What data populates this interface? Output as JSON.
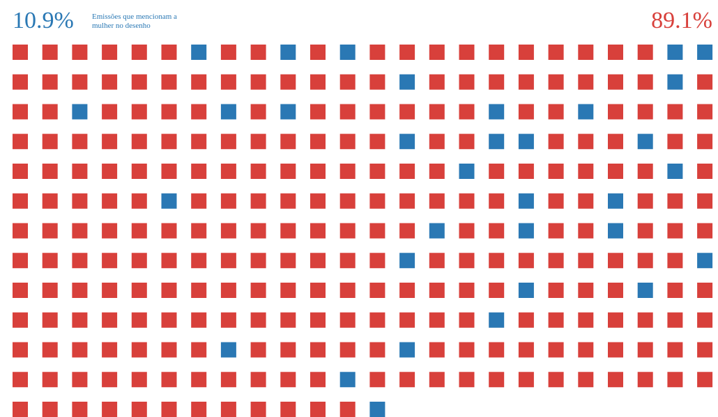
{
  "chart_data": {
    "type": "waffle",
    "series": [
      {
        "name": "Emissões que mencionam a mulher no desenho",
        "color": "#2a78b4",
        "value": 10.9,
        "value_label": "10.9%"
      },
      {
        "color": "#d8403b",
        "value": 89.1,
        "value_label": "89.1%"
      }
    ],
    "cells": [
      [
        1,
        1,
        1,
        1,
        1,
        1,
        0,
        1,
        1,
        0,
        1,
        0,
        1,
        1,
        1,
        1,
        1,
        1,
        1,
        1,
        1,
        1,
        0,
        0
      ],
      [
        1,
        1,
        1,
        1,
        1,
        1,
        1,
        1,
        1,
        1,
        1,
        1,
        1,
        0,
        1,
        1,
        1,
        1,
        1,
        1,
        1,
        1,
        0,
        1
      ],
      [
        1,
        1,
        0,
        1,
        1,
        1,
        1,
        0,
        1,
        0,
        1,
        1,
        1,
        1,
        1,
        1,
        0,
        1,
        1,
        0,
        1,
        1,
        1,
        1
      ],
      [
        1,
        1,
        1,
        1,
        1,
        1,
        1,
        1,
        1,
        1,
        1,
        1,
        1,
        0,
        1,
        1,
        0,
        0,
        1,
        1,
        1,
        0,
        1,
        1
      ],
      [
        1,
        1,
        1,
        1,
        1,
        1,
        1,
        1,
        1,
        1,
        1,
        1,
        1,
        1,
        1,
        0,
        1,
        1,
        1,
        1,
        1,
        1,
        0,
        1
      ],
      [
        1,
        1,
        1,
        1,
        1,
        0,
        1,
        1,
        1,
        1,
        1,
        1,
        1,
        1,
        1,
        1,
        1,
        0,
        1,
        1,
        0,
        1,
        1,
        1
      ],
      [
        1,
        1,
        1,
        1,
        1,
        1,
        1,
        1,
        1,
        1,
        1,
        1,
        1,
        1,
        0,
        1,
        1,
        0,
        1,
        1,
        0,
        1,
        1,
        1
      ],
      [
        1,
        1,
        1,
        1,
        1,
        1,
        1,
        1,
        1,
        1,
        1,
        1,
        1,
        0,
        1,
        1,
        1,
        1,
        1,
        1,
        1,
        1,
        1,
        0
      ],
      [
        1,
        1,
        1,
        1,
        1,
        1,
        1,
        1,
        1,
        1,
        1,
        1,
        1,
        1,
        1,
        1,
        1,
        0,
        1,
        1,
        1,
        0,
        1,
        1
      ],
      [
        1,
        1,
        1,
        1,
        1,
        1,
        1,
        1,
        1,
        1,
        1,
        1,
        1,
        1,
        1,
        1,
        0,
        1,
        1,
        1,
        1,
        1,
        1,
        1
      ],
      [
        1,
        1,
        1,
        1,
        1,
        1,
        1,
        0,
        1,
        1,
        1,
        1,
        1,
        0,
        1,
        1,
        1,
        1,
        1,
        1,
        1,
        1,
        1,
        1
      ],
      [
        1,
        1,
        1,
        1,
        1,
        1,
        1,
        1,
        1,
        1,
        1,
        0,
        1,
        1,
        1,
        1,
        1,
        1,
        1,
        1,
        1,
        1,
        1,
        1
      ],
      [
        1,
        1,
        1,
        1,
        1,
        1,
        1,
        1,
        1,
        1,
        1,
        1,
        0
      ]
    ]
  }
}
